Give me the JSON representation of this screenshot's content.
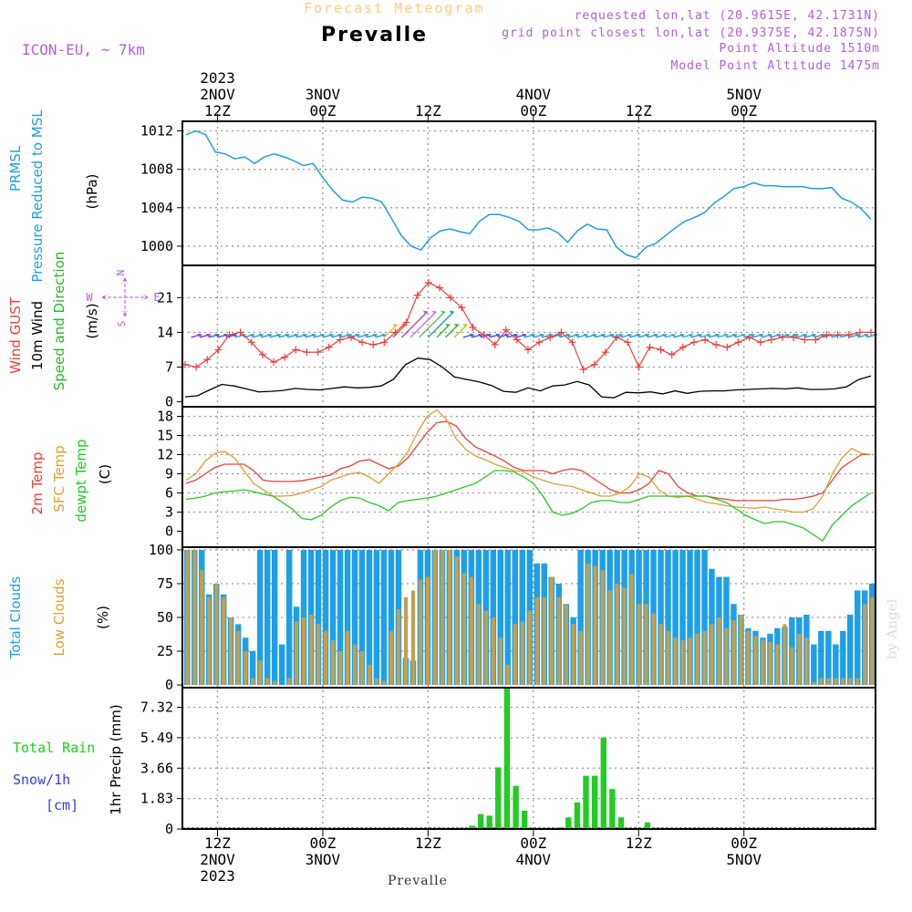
{
  "header": {
    "product": "Forecast Meteogram",
    "location": "Prevalle",
    "model": "ICON-EU, ~ 7km",
    "requested": "requested lon,lat (20.9615E, 42.1731N)",
    "gridpoint": "grid point closest lon,lat (20.9375E, 42.1875N)",
    "altitude": "Point Altitude 1510m",
    "model_altitude": "Model Point Altitude 1475m",
    "footer_location": "Prevalle",
    "watermark": "by Angel"
  },
  "colors": {
    "pressure": "#1e9fe0",
    "gust": "#f03c3c",
    "wind": "#000000",
    "dir": "#22bb22",
    "temp2m": "#f03c3c",
    "sfc": "#dda030",
    "dewpt": "#22cc22",
    "total_clouds": "#1e9fe8",
    "low_clouds": "#c0a050",
    "rain": "#22cc22",
    "snow": "#3a3aee",
    "header_title": "#ffcf80",
    "header_info": "#b25ed8"
  },
  "time_axis": {
    "top_labels": [
      {
        "hour": 12,
        "lines": [
          "2023",
          "2NOV",
          "12Z"
        ]
      },
      {
        "hour": 24,
        "lines": [
          "3NOV",
          "00Z"
        ]
      },
      {
        "hour": 36,
        "lines": [
          "12Z"
        ]
      },
      {
        "hour": 48,
        "lines": [
          "4NOV",
          "00Z"
        ]
      },
      {
        "hour": 60,
        "lines": [
          "12Z"
        ]
      },
      {
        "hour": 72,
        "lines": [
          "5NOV",
          "00Z"
        ]
      }
    ],
    "bottom_labels": [
      {
        "hour": 12,
        "lines": [
          "12Z",
          "2NOV",
          "2023"
        ]
      },
      {
        "hour": 24,
        "lines": [
          "00Z",
          "3NOV"
        ]
      },
      {
        "hour": 36,
        "lines": [
          "12Z"
        ]
      },
      {
        "hour": 48,
        "lines": [
          "00Z",
          "4NOV"
        ]
      },
      {
        "hour": 60,
        "lines": [
          "12Z"
        ]
      },
      {
        "hour": 72,
        "lines": [
          "00Z",
          "5NOV"
        ]
      }
    ]
  },
  "chart_data": [
    {
      "type": "line",
      "panel": "pressure",
      "ylabels": [
        "PRMSL",
        "Pressure Reduced to MSL"
      ],
      "unit": "(hPa)",
      "ylim": [
        998,
        1013
      ],
      "yticks": [
        1000,
        1004,
        1008,
        1012
      ],
      "grid": true,
      "series": [
        {
          "values": [
            1011.6,
            1012.0,
            1011.6,
            1009.8,
            1009.6,
            1009.1,
            1009.3,
            1008.6,
            1009.3,
            1009.6,
            1009.3,
            1008.9,
            1008.4,
            1008.6,
            1007.1,
            1005.8,
            1004.8,
            1004.6,
            1005.1,
            1005.0,
            1004.6,
            1002.9,
            1001.1,
            1000.0,
            999.6,
            1000.9,
            1001.6,
            1001.8,
            1001.5,
            1001.3,
            1002.6,
            1003.3,
            1003.3,
            1003.0,
            1002.6,
            1001.7,
            1001.7,
            1001.9,
            1001.4,
            1000.4,
            1001.6,
            1002.3,
            1001.8,
            1001.7,
            999.9,
            999.1,
            998.8,
            999.9,
            1000.3,
            1001.1,
            1001.9,
            1002.6,
            1003.0,
            1003.5,
            1004.5,
            1005.2,
            1006.0,
            1006.2,
            1006.6,
            1006.3,
            1006.3,
            1006.2,
            1006.2,
            1006.2,
            1006.0,
            1006.0,
            1006.1,
            1005.0,
            1004.6,
            1003.9,
            1002.8
          ]
        }
      ]
    },
    {
      "type": "line",
      "panel": "wind",
      "ylabels": [
        "Wind GUST",
        "10m Wind",
        "Speed and Direction"
      ],
      "unit": "(m/s)",
      "compass": {
        "n": "N",
        "s": "S",
        "w": "W",
        "e": "E"
      },
      "ylim": [
        -1,
        27.5
      ],
      "yticks": [
        0,
        7,
        14,
        21
      ],
      "grid": true,
      "series": [
        {
          "name": "Wind GUST",
          "values": [
            7.5,
            7.0,
            8.5,
            10.5,
            13.5,
            14.0,
            12.0,
            9.5,
            8.0,
            9.0,
            10.5,
            10.0,
            10.0,
            11.0,
            12.5,
            13.0,
            12.0,
            11.5,
            12.0,
            14.0,
            16.0,
            21.5,
            24.0,
            23.0,
            21.0,
            19.0,
            15.0,
            13.5,
            11.5,
            14.5,
            12.5,
            10.5,
            12.0,
            13.0,
            14.0,
            12.0,
            6.5,
            7.5,
            10.0,
            13.0,
            12.0,
            7.0,
            11.0,
            10.5,
            9.5,
            11.0,
            12.0,
            12.5,
            11.5,
            11.0,
            12.0,
            13.0,
            12.0,
            12.5,
            13.0,
            13.0,
            12.5,
            12.5,
            13.5,
            13.5,
            13.5,
            14.0,
            14.0
          ]
        },
        {
          "name": "10m Wind",
          "values": [
            1.0,
            1.2,
            2.4,
            3.5,
            3.2,
            2.6,
            2.0,
            2.1,
            2.3,
            2.7,
            2.5,
            2.4,
            2.7,
            3.0,
            2.8,
            2.9,
            3.2,
            4.5,
            7.5,
            8.8,
            8.5,
            7.0,
            5.0,
            4.5,
            4.0,
            3.3,
            2.1,
            1.9,
            2.8,
            2.2,
            3.2,
            3.4,
            4.1,
            3.4,
            1.0,
            0.8,
            1.9,
            1.8,
            2.0,
            1.6,
            2.2,
            1.7,
            2.1,
            2.2,
            2.2,
            2.4,
            2.5,
            2.6,
            2.7,
            2.6,
            2.8,
            2.5,
            2.5,
            2.6,
            3.0,
            4.5,
            5.2
          ]
        }
      ]
    },
    {
      "type": "line",
      "panel": "temperature",
      "ylabels": [
        "2m Temp",
        "SFC Temp",
        "dewpt Temp"
      ],
      "unit": "(C)",
      "ylim": [
        -2.5,
        19.5
      ],
      "yticks": [
        0,
        3,
        6,
        9,
        12,
        15,
        18
      ],
      "grid": true,
      "series": [
        {
          "name": "2m Temp",
          "values": [
            7.5,
            8.0,
            9.0,
            10.0,
            10.5,
            10.5,
            10.5,
            9.5,
            8.0,
            7.8,
            7.8,
            7.8,
            7.9,
            8.2,
            8.5,
            8.8,
            9.8,
            10.2,
            11.0,
            11.2,
            10.5,
            9.8,
            10.2,
            11.5,
            13.5,
            15.5,
            17.0,
            17.2,
            16.5,
            14.5,
            13.2,
            12.5,
            11.8,
            11.0,
            10.0,
            9.5,
            9.5,
            9.5,
            9.0,
            9.5,
            9.8,
            9.5,
            8.5,
            7.5,
            6.5,
            6.0,
            6.0,
            6.5,
            7.5,
            9.5,
            9.0,
            7.0,
            6.0,
            5.5,
            5.5,
            5.2,
            5.0,
            4.8,
            4.8,
            4.8,
            4.8,
            4.8,
            5.0,
            5.0,
            5.2,
            5.5,
            6.0,
            8.0,
            10.0,
            11.0,
            12.0,
            12.0
          ]
        },
        {
          "name": "SFC Temp",
          "values": [
            8.0,
            9.0,
            11.0,
            12.2,
            12.5,
            11.5,
            9.5,
            7.5,
            6.5,
            5.5,
            5.5,
            5.6,
            6.0,
            6.5,
            7.0,
            8.0,
            8.5,
            9.0,
            9.2,
            8.5,
            7.5,
            9.0,
            10.5,
            12.5,
            15.5,
            18.0,
            19.0,
            17.5,
            14.5,
            12.8,
            11.8,
            11.2,
            10.5,
            10.0,
            9.5,
            9.3,
            8.5,
            8.0,
            7.5,
            7.2,
            7.0,
            6.5,
            6.0,
            5.5,
            5.5,
            6.0,
            7.0,
            9.0,
            8.5,
            6.5,
            5.5,
            5.3,
            5.5,
            5.0,
            4.5,
            4.3,
            4.0,
            3.8,
            3.7,
            3.6,
            3.8,
            3.5,
            3.3,
            3.0,
            3.0,
            3.5,
            5.5,
            9.0,
            11.5,
            13.0,
            12.2,
            12.0
          ]
        },
        {
          "name": "dewpt Temp",
          "values": [
            5.0,
            5.2,
            5.5,
            6.0,
            6.2,
            6.3,
            6.5,
            6.2,
            5.8,
            5.5,
            4.5,
            3.5,
            2.0,
            1.8,
            2.5,
            3.8,
            4.8,
            5.3,
            5.2,
            4.5,
            4.0,
            3.2,
            4.5,
            4.8,
            5.0,
            5.2,
            5.5,
            6.0,
            6.5,
            7.0,
            7.5,
            8.5,
            9.5,
            9.5,
            9.3,
            8.5,
            7.5,
            5.5,
            3.0,
            2.5,
            2.8,
            3.5,
            4.5,
            4.8,
            4.8,
            4.5,
            4.5,
            5.0,
            5.5,
            5.5,
            5.5,
            5.5,
            5.5,
            5.5,
            5.5,
            5.0,
            4.5,
            3.5,
            2.5,
            1.8,
            1.2,
            1.5,
            1.5,
            1.0,
            0.5,
            -0.5,
            -1.5,
            1.0,
            2.5,
            4.0,
            5.0,
            6.0
          ]
        }
      ]
    },
    {
      "type": "bar",
      "panel": "clouds",
      "ylabels": [
        "Total Clouds",
        "Low Clouds"
      ],
      "unit": "(%)",
      "ylim": [
        -2,
        102
      ],
      "yticks": [
        0,
        25,
        50,
        75,
        100
      ],
      "grid": true,
      "series": [
        {
          "name": "Total Clouds",
          "values": [
            100,
            100,
            100,
            67,
            75,
            67,
            50,
            45,
            35,
            25,
            100,
            100,
            100,
            30,
            100,
            58,
            100,
            100,
            100,
            100,
            100,
            100,
            100,
            100,
            100,
            100,
            100,
            100,
            100,
            100,
            20,
            18,
            100,
            100,
            100,
            100,
            100,
            100,
            100,
            100,
            100,
            100,
            100,
            100,
            100,
            100,
            100,
            100,
            90,
            90,
            80,
            75,
            60,
            50,
            100,
            100,
            100,
            100,
            100,
            100,
            100,
            100,
            100,
            100,
            100,
            100,
            100,
            100,
            100,
            100,
            100,
            100,
            86,
            80,
            80,
            60,
            52,
            42,
            40,
            35,
            38,
            42,
            43,
            50,
            50,
            52,
            30,
            40,
            40,
            30,
            40,
            52,
            70,
            70,
            75
          ]
        },
        {
          "name": "Low Clouds",
          "values": [
            100,
            100,
            85,
            65,
            75,
            65,
            50,
            40,
            25,
            5,
            18,
            5,
            3,
            0,
            5,
            47,
            50,
            52,
            45,
            40,
            33,
            25,
            40,
            30,
            25,
            15,
            5,
            3,
            40,
            56,
            65,
            70,
            78,
            80,
            100,
            100,
            100,
            95,
            83,
            80,
            60,
            55,
            50,
            35,
            15,
            45,
            47,
            55,
            65,
            65,
            80,
            65,
            60,
            45,
            40,
            90,
            88,
            85,
            70,
            75,
            72,
            82,
            60,
            60,
            53,
            45,
            40,
            35,
            33,
            35,
            38,
            40,
            45,
            50,
            42,
            48,
            52,
            40,
            36,
            33,
            32,
            30,
            45,
            28,
            38,
            35,
            2,
            5,
            5,
            5,
            5,
            5,
            5,
            60,
            65,
            60
          ]
        }
      ]
    },
    {
      "type": "bar",
      "panel": "precip",
      "ylabels": [
        "Total Rain",
        "Snow/1h",
        "[cm]"
      ],
      "ytitle": "1hr Precip (mm)",
      "ylim": [
        0,
        8.5
      ],
      "yticks": [
        "0",
        "1.83",
        "3.66",
        "5.49",
        "7.32"
      ],
      "grid": true,
      "series": [
        {
          "name": "Total Rain",
          "bars": [
            {
              "hour": 41,
              "value": 0.2
            },
            {
              "hour": 42,
              "value": 0.9
            },
            {
              "hour": 43,
              "value": 0.8
            },
            {
              "hour": 44,
              "value": 3.7
            },
            {
              "hour": 45,
              "value": 8.5
            },
            {
              "hour": 46,
              "value": 2.6
            },
            {
              "hour": 47,
              "value": 1.1
            },
            {
              "hour": 51,
              "value": 0.1
            },
            {
              "hour": 52,
              "value": 0.7
            },
            {
              "hour": 53,
              "value": 1.6
            },
            {
              "hour": 54,
              "value": 3.2
            },
            {
              "hour": 55,
              "value": 3.2
            },
            {
              "hour": 56,
              "value": 5.5
            },
            {
              "hour": 57,
              "value": 2.4
            },
            {
              "hour": 58,
              "value": 0.7
            },
            {
              "hour": 61,
              "value": 0.4
            }
          ]
        }
      ]
    }
  ]
}
